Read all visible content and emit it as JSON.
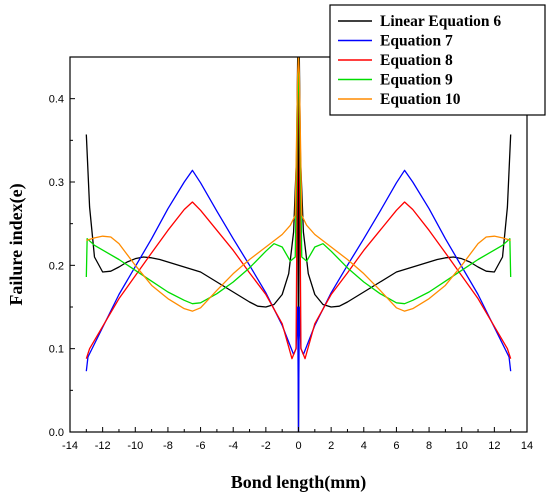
{
  "chart_data": {
    "type": "line",
    "xlabel": "Bond length(mm)",
    "ylabel": "Failure index(e)",
    "xlim": [
      -14,
      14
    ],
    "ylim": [
      0,
      0.45
    ],
    "xticks": [
      -14,
      -12,
      -10,
      -8,
      -6,
      -4,
      -2,
      0,
      2,
      4,
      6,
      8,
      10,
      12,
      14
    ],
    "yticks": [
      "0.0",
      "0.1",
      "0.2",
      "0.3",
      "0.4"
    ],
    "legend_position": "top-right",
    "series": [
      {
        "name": "Linear Equation 6",
        "color": "#000000",
        "points": [
          [
            -13.0,
            0.357
          ],
          [
            -12.8,
            0.27
          ],
          [
            -12.5,
            0.21
          ],
          [
            -12.0,
            0.192
          ],
          [
            -11.5,
            0.193
          ],
          [
            -11.0,
            0.198
          ],
          [
            -10.5,
            0.204
          ],
          [
            -10.0,
            0.208
          ],
          [
            -9.5,
            0.21
          ],
          [
            -9.0,
            0.209
          ],
          [
            -8.5,
            0.207
          ],
          [
            -8.0,
            0.204
          ],
          [
            -7.0,
            0.198
          ],
          [
            -6.5,
            0.195
          ],
          [
            -6.0,
            0.192
          ],
          [
            -5.0,
            0.18
          ],
          [
            -4.0,
            0.168
          ],
          [
            -3.0,
            0.156
          ],
          [
            -2.5,
            0.151
          ],
          [
            -2.0,
            0.15
          ],
          [
            -1.5,
            0.153
          ],
          [
            -1.0,
            0.165
          ],
          [
            -0.6,
            0.19
          ],
          [
            -0.3,
            0.24
          ],
          [
            -0.12,
            0.33
          ],
          [
            -0.05,
            0.45
          ],
          [
            0.0,
            0.0
          ],
          [
            0.05,
            0.45
          ],
          [
            0.12,
            0.33
          ],
          [
            0.3,
            0.24
          ],
          [
            0.6,
            0.19
          ],
          [
            1.0,
            0.165
          ],
          [
            1.5,
            0.153
          ],
          [
            2.0,
            0.15
          ],
          [
            2.5,
            0.151
          ],
          [
            3.0,
            0.156
          ],
          [
            4.0,
            0.168
          ],
          [
            5.0,
            0.18
          ],
          [
            6.0,
            0.192
          ],
          [
            6.5,
            0.195
          ],
          [
            7.0,
            0.198
          ],
          [
            8.0,
            0.204
          ],
          [
            8.5,
            0.207
          ],
          [
            9.0,
            0.209
          ],
          [
            9.5,
            0.21
          ],
          [
            10.0,
            0.208
          ],
          [
            10.5,
            0.204
          ],
          [
            11.0,
            0.198
          ],
          [
            11.5,
            0.193
          ],
          [
            12.0,
            0.192
          ],
          [
            12.5,
            0.21
          ],
          [
            12.8,
            0.27
          ],
          [
            13.0,
            0.357
          ]
        ]
      },
      {
        "name": "Equation 7",
        "color": "#0000ff",
        "points": [
          [
            -13.0,
            0.073
          ],
          [
            -12.9,
            0.09
          ],
          [
            -11.0,
            0.165
          ],
          [
            -9.0,
            0.232
          ],
          [
            -8.0,
            0.268
          ],
          [
            -7.0,
            0.3
          ],
          [
            -6.5,
            0.314
          ],
          [
            -6.0,
            0.299
          ],
          [
            -5.0,
            0.265
          ],
          [
            -4.0,
            0.232
          ],
          [
            -3.0,
            0.2
          ],
          [
            -2.0,
            0.167
          ],
          [
            -1.0,
            0.128
          ],
          [
            -0.3,
            0.093
          ],
          [
            -0.15,
            0.1
          ],
          [
            -0.05,
            0.15
          ],
          [
            0.0,
            0.0
          ],
          [
            0.05,
            0.15
          ],
          [
            0.15,
            0.1
          ],
          [
            0.3,
            0.093
          ],
          [
            1.0,
            0.128
          ],
          [
            2.0,
            0.167
          ],
          [
            3.0,
            0.2
          ],
          [
            4.0,
            0.232
          ],
          [
            5.0,
            0.265
          ],
          [
            6.0,
            0.299
          ],
          [
            6.5,
            0.314
          ],
          [
            7.0,
            0.3
          ],
          [
            8.0,
            0.268
          ],
          [
            9.0,
            0.232
          ],
          [
            11.0,
            0.165
          ],
          [
            12.9,
            0.09
          ],
          [
            13.0,
            0.073
          ]
        ]
      },
      {
        "name": "Equation 8",
        "color": "#ff0000",
        "points": [
          [
            -13.0,
            0.088
          ],
          [
            -12.8,
            0.1
          ],
          [
            -11.0,
            0.16
          ],
          [
            -9.0,
            0.215
          ],
          [
            -8.0,
            0.242
          ],
          [
            -7.0,
            0.267
          ],
          [
            -6.5,
            0.276
          ],
          [
            -6.0,
            0.266
          ],
          [
            -5.0,
            0.242
          ],
          [
            -4.0,
            0.218
          ],
          [
            -3.0,
            0.191
          ],
          [
            -2.0,
            0.165
          ],
          [
            -1.0,
            0.13
          ],
          [
            -0.4,
            0.088
          ],
          [
            -0.15,
            0.1
          ],
          [
            -0.05,
            0.38
          ],
          [
            0.0,
            0.45
          ],
          [
            0.05,
            0.38
          ],
          [
            0.15,
            0.1
          ],
          [
            0.4,
            0.088
          ],
          [
            1.0,
            0.13
          ],
          [
            2.0,
            0.165
          ],
          [
            3.0,
            0.191
          ],
          [
            4.0,
            0.218
          ],
          [
            5.0,
            0.242
          ],
          [
            6.0,
            0.266
          ],
          [
            6.5,
            0.276
          ],
          [
            7.0,
            0.267
          ],
          [
            8.0,
            0.242
          ],
          [
            9.0,
            0.215
          ],
          [
            11.0,
            0.16
          ],
          [
            12.8,
            0.1
          ],
          [
            13.0,
            0.088
          ]
        ]
      },
      {
        "name": "Equation 9",
        "color": "#00dd00",
        "points": [
          [
            -13.0,
            0.186
          ],
          [
            -12.95,
            0.232
          ],
          [
            -12.5,
            0.224
          ],
          [
            -11.0,
            0.207
          ],
          [
            -10.0,
            0.194
          ],
          [
            -9.0,
            0.181
          ],
          [
            -8.0,
            0.168
          ],
          [
            -7.0,
            0.158
          ],
          [
            -6.5,
            0.154
          ],
          [
            -6.0,
            0.155
          ],
          [
            -5.0,
            0.166
          ],
          [
            -4.0,
            0.18
          ],
          [
            -3.0,
            0.197
          ],
          [
            -2.0,
            0.217
          ],
          [
            -1.5,
            0.226
          ],
          [
            -1.0,
            0.222
          ],
          [
            -0.5,
            0.205
          ],
          [
            -0.2,
            0.21
          ],
          [
            -0.05,
            0.4
          ],
          [
            0.0,
            0.45
          ],
          [
            0.05,
            0.4
          ],
          [
            0.2,
            0.21
          ],
          [
            0.5,
            0.205
          ],
          [
            1.0,
            0.222
          ],
          [
            1.5,
            0.226
          ],
          [
            2.0,
            0.217
          ],
          [
            3.0,
            0.197
          ],
          [
            4.0,
            0.18
          ],
          [
            5.0,
            0.166
          ],
          [
            6.0,
            0.155
          ],
          [
            6.5,
            0.154
          ],
          [
            7.0,
            0.158
          ],
          [
            8.0,
            0.168
          ],
          [
            9.0,
            0.181
          ],
          [
            10.0,
            0.194
          ],
          [
            11.0,
            0.207
          ],
          [
            12.5,
            0.224
          ],
          [
            12.95,
            0.232
          ],
          [
            13.0,
            0.186
          ]
        ]
      },
      {
        "name": "Equation 10",
        "color": "#ff8c00",
        "points": [
          [
            -13.0,
            0.23
          ],
          [
            -12.5,
            0.233
          ],
          [
            -12.0,
            0.235
          ],
          [
            -11.5,
            0.234
          ],
          [
            -11.0,
            0.226
          ],
          [
            -10.0,
            0.2
          ],
          [
            -9.0,
            0.176
          ],
          [
            -8.0,
            0.16
          ],
          [
            -7.0,
            0.148
          ],
          [
            -6.5,
            0.145
          ],
          [
            -6.0,
            0.149
          ],
          [
            -5.0,
            0.17
          ],
          [
            -4.0,
            0.19
          ],
          [
            -3.0,
            0.207
          ],
          [
            -2.0,
            0.222
          ],
          [
            -1.0,
            0.237
          ],
          [
            -0.5,
            0.248
          ],
          [
            -0.2,
            0.26
          ],
          [
            -0.05,
            0.43
          ],
          [
            0.0,
            0.45
          ],
          [
            0.05,
            0.43
          ],
          [
            0.2,
            0.26
          ],
          [
            0.5,
            0.248
          ],
          [
            1.0,
            0.237
          ],
          [
            2.0,
            0.222
          ],
          [
            3.0,
            0.207
          ],
          [
            4.0,
            0.19
          ],
          [
            5.0,
            0.17
          ],
          [
            6.0,
            0.149
          ],
          [
            6.5,
            0.145
          ],
          [
            7.0,
            0.148
          ],
          [
            8.0,
            0.16
          ],
          [
            9.0,
            0.176
          ],
          [
            10.0,
            0.2
          ],
          [
            11.0,
            0.226
          ],
          [
            11.5,
            0.234
          ],
          [
            12.0,
            0.235
          ],
          [
            12.5,
            0.233
          ],
          [
            13.0,
            0.23
          ]
        ]
      }
    ]
  }
}
